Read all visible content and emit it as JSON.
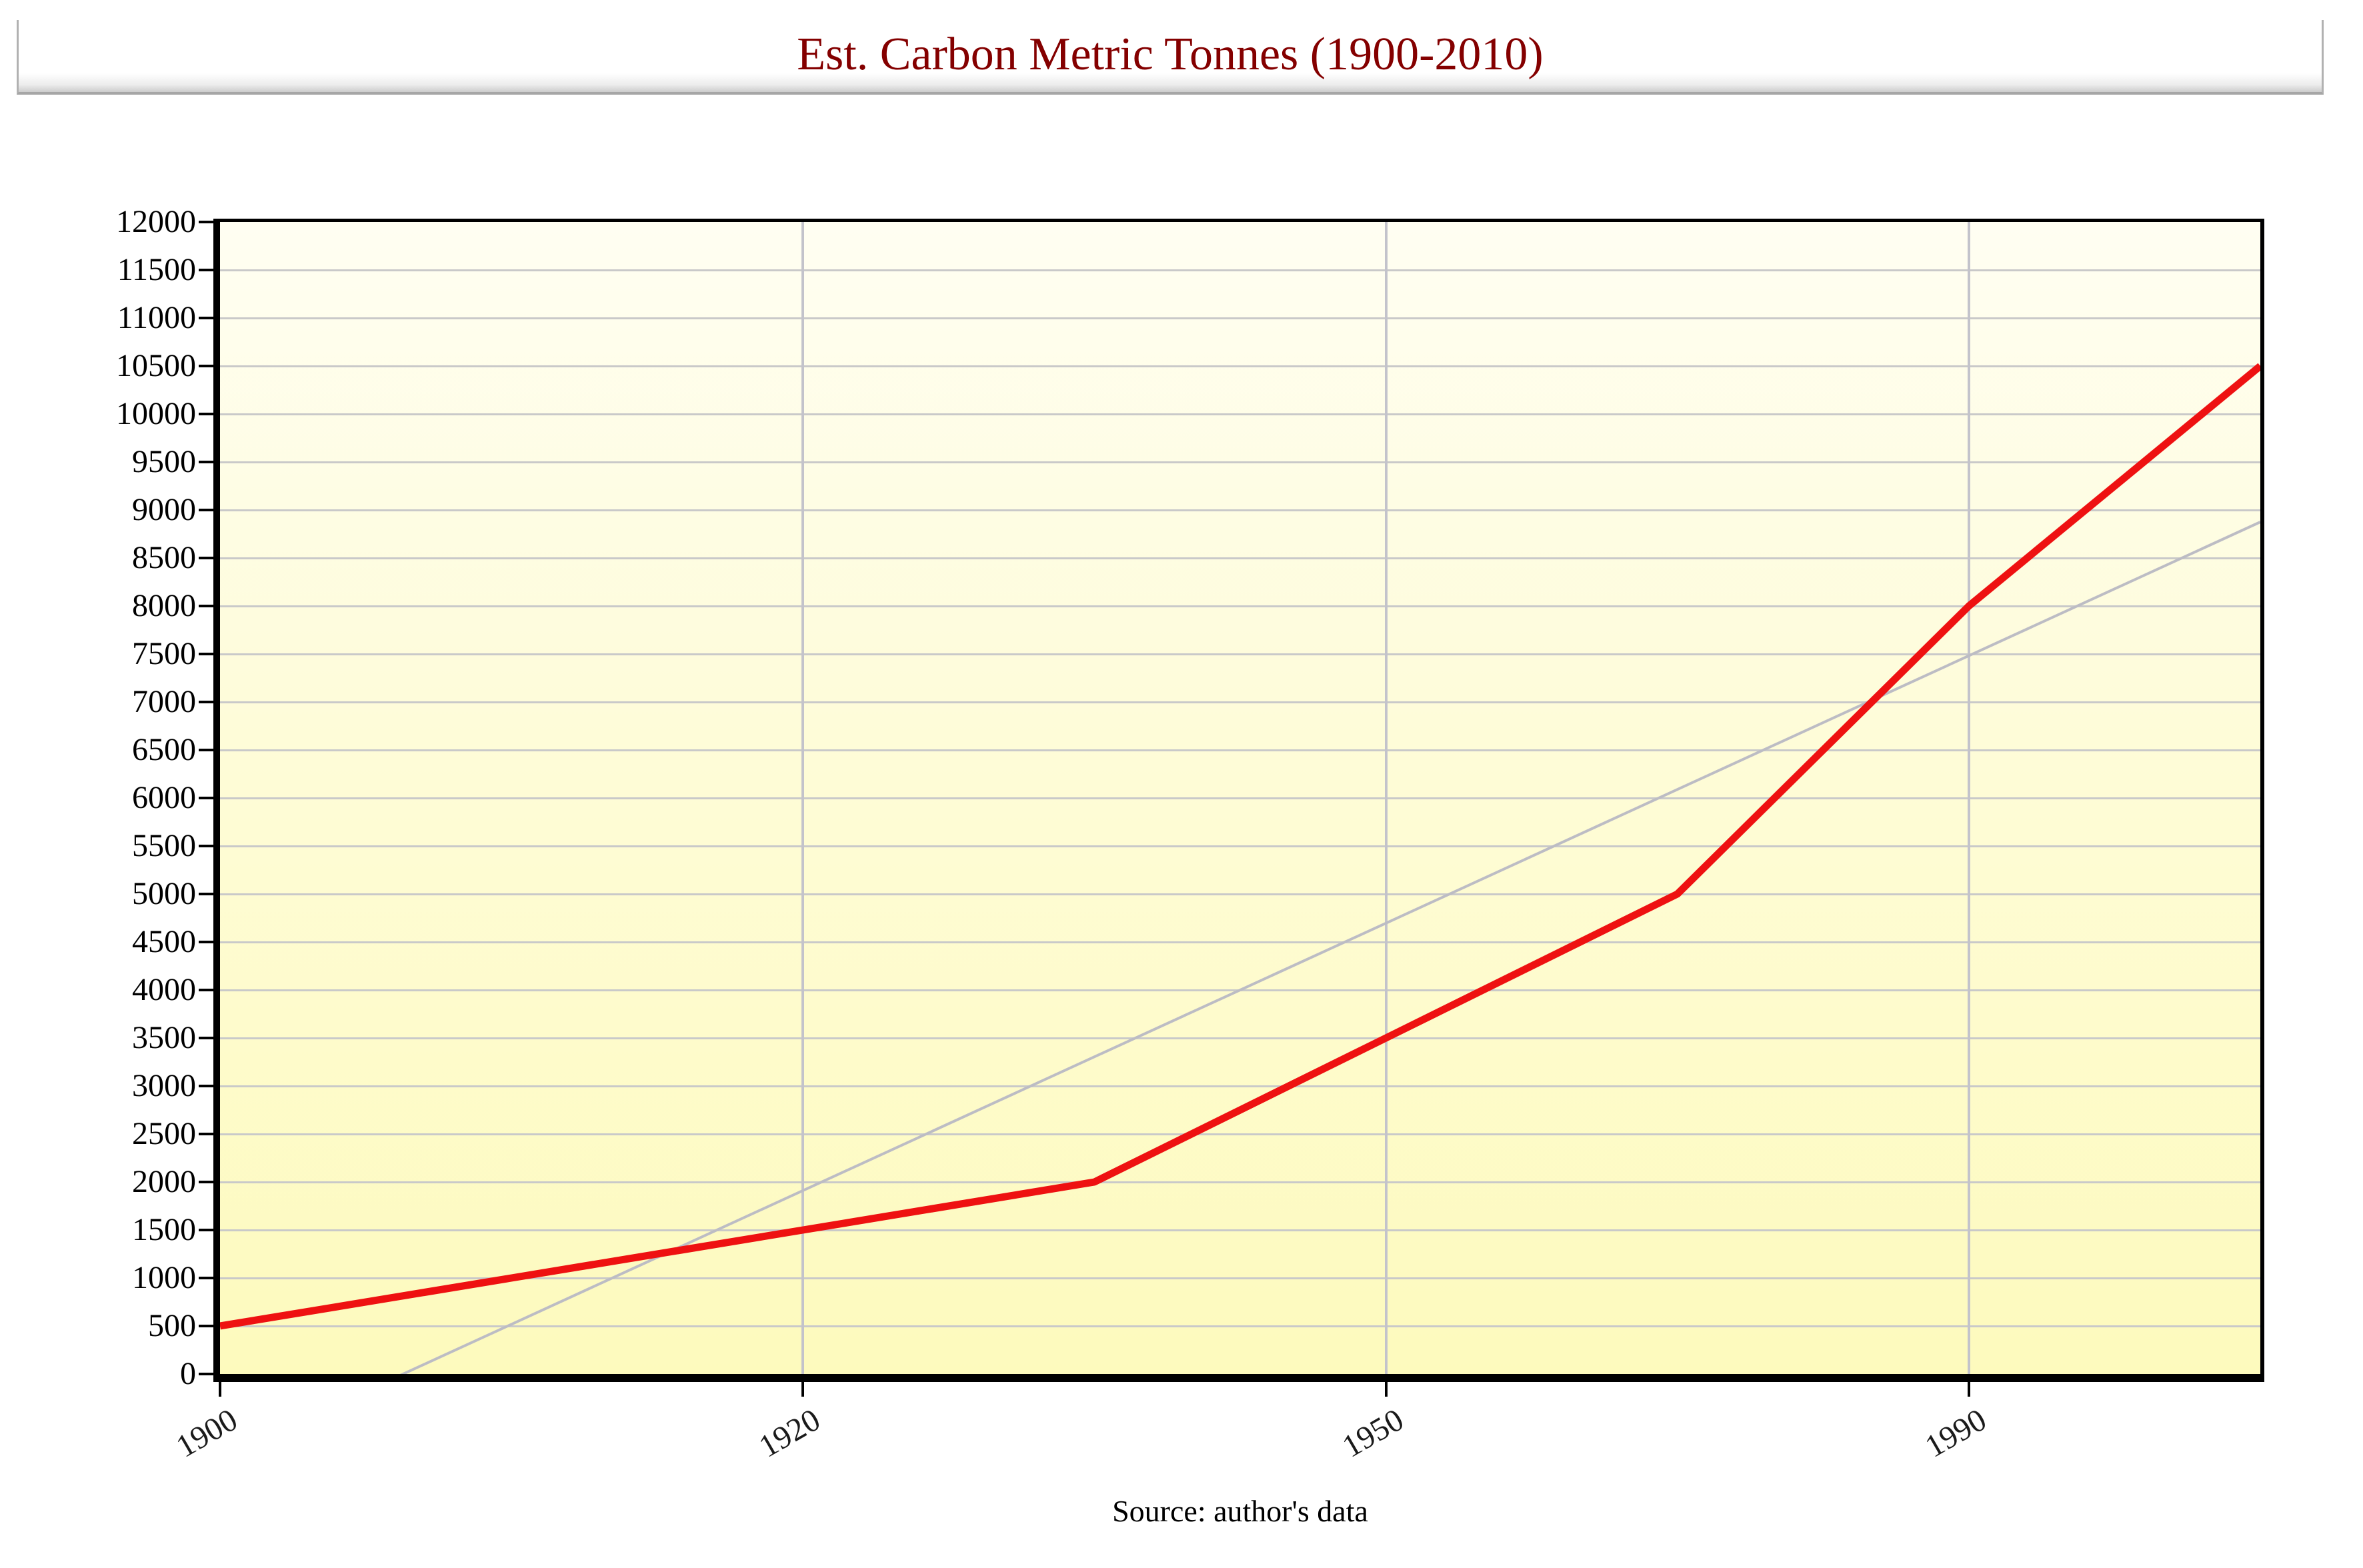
{
  "header": {
    "title_color": "#840000"
  },
  "footer": {
    "source": "Source: author's data"
  },
  "chart_data": {
    "type": "line",
    "title": "Est. Carbon Metric Tonnes (1900-2010)",
    "source": "Source: author's data",
    "grid": true,
    "legend": "none",
    "plot_bg_top": "#fffef2",
    "plot_bg_bottom": "#fdfabd",
    "x_axis": {
      "n_points": 8,
      "tick_labels": [
        "1900",
        "1920",
        "1950",
        "1990"
      ],
      "tick_point_indices": [
        0,
        2,
        4,
        6
      ],
      "label_rotation_deg": -30
    },
    "y_axis": {
      "min": 0,
      "max": 12000,
      "step": 500,
      "tick_labels": [
        "0",
        "500",
        "1000",
        "1500",
        "2000",
        "2500",
        "3000",
        "3500",
        "4000",
        "4500",
        "5000",
        "5500",
        "6000",
        "6500",
        "7000",
        "7500",
        "8000",
        "8500",
        "9000",
        "9500",
        "10000",
        "10500",
        "11000",
        "11500",
        "12000"
      ]
    },
    "series": [
      {
        "name": "estimated-carbon-metric-tonnes",
        "color": "#ee1111",
        "stroke_width": 11,
        "values": [
          500,
          1000,
          1500,
          2000,
          3500,
          5000,
          8000,
          10500
        ]
      },
      {
        "name": "linear-trend",
        "color": "#bcbcc4",
        "stroke_width": 4,
        "values": [
          -875,
          518,
          1911,
          3304,
          4696,
          6089,
          7482,
          8875
        ]
      }
    ]
  }
}
